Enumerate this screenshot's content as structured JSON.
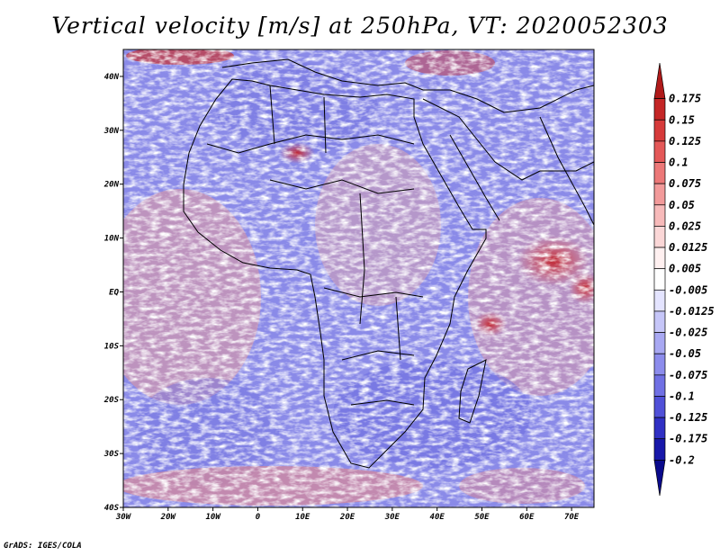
{
  "title": "Vertical velocity [m/s] at 250hPa, VT: 2020052303",
  "footer": "GrADS: IGES/COLA",
  "map": {
    "lon_range": [
      -30,
      75
    ],
    "lat_range": [
      -40,
      45
    ],
    "lon_ticks": [
      "30W",
      "20W",
      "10W",
      "0",
      "10E",
      "20E",
      "30E",
      "40E",
      "50E",
      "60E",
      "70E"
    ],
    "lat_ticks": [
      "40N",
      "30N",
      "20N",
      "10N",
      "EQ",
      "10S",
      "20S",
      "30S",
      "40S"
    ],
    "variable": "Vertical velocity",
    "level": "250hPa",
    "valid_time": "2020052303",
    "units": "m/s"
  },
  "colorbar": {
    "labels": [
      "0.175",
      "0.15",
      "0.125",
      "0.1",
      "0.075",
      "0.05",
      "0.025",
      "0.0125",
      "0.005",
      "-0.005",
      "-0.0125",
      "-0.025",
      "-0.05",
      "-0.075",
      "-0.1",
      "-0.125",
      "-0.175",
      "-0.2"
    ],
    "colors": [
      "#b01a1a",
      "#c42626",
      "#d63a3a",
      "#e45858",
      "#ec7878",
      "#f29a9a",
      "#f7baba",
      "#fbd7d7",
      "#fff0f0",
      "#ffffff",
      "#e4e4ff",
      "#c6c6f8",
      "#a8a8f2",
      "#8c8cec",
      "#7070e4",
      "#5050d8",
      "#3030c4",
      "#1818aa",
      "#0a0a8c"
    ]
  }
}
